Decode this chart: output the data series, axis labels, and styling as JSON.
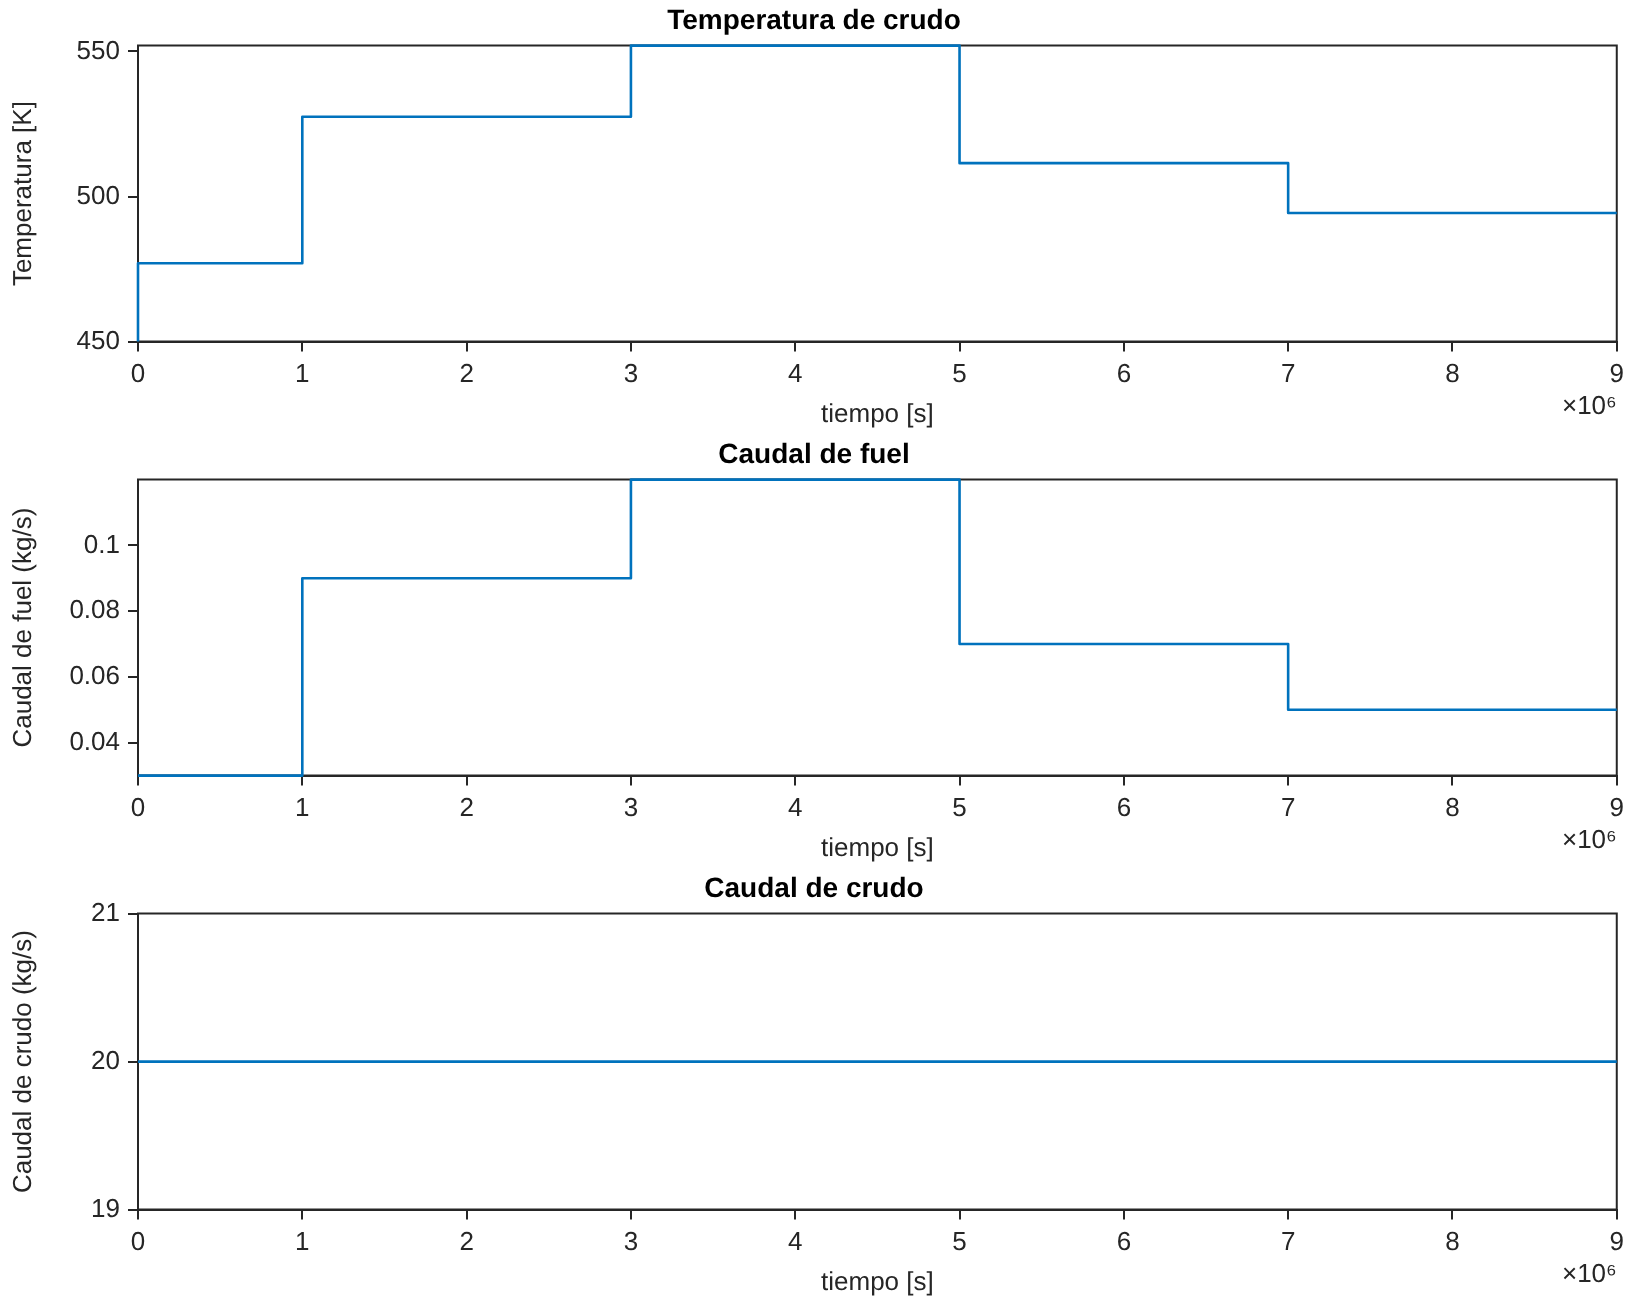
{
  "chart_data": [
    {
      "type": "step",
      "title": "Temperatura de crudo",
      "xlabel": "tiempo [s]",
      "ylabel": "Temperatura [K]",
      "annotations": [
        "×10⁶"
      ],
      "x": [
        0,
        0,
        1,
        3,
        5,
        7,
        9
      ],
      "series": [
        {
          "color": "#0072bd",
          "values": [
            450,
            477,
            527.5,
            552,
            511.5,
            494.3,
            494.3
          ]
        }
      ],
      "xlim": [
        0,
        9
      ],
      "xticks": [
        0,
        1,
        2,
        3,
        4,
        5,
        6,
        7,
        8,
        9
      ],
      "ylim": [
        450,
        552
      ],
      "yticks": [
        450,
        500,
        550
      ],
      "marker": "none",
      "line_style": "solid"
    },
    {
      "type": "step",
      "title": "Caudal de fuel",
      "xlabel": "tiempo [s]",
      "ylabel": "Caudal de fuel (kg/s)",
      "annotations": [
        "×10⁶"
      ],
      "x": [
        0,
        1,
        3,
        5,
        7,
        9
      ],
      "series": [
        {
          "color": "#0072bd",
          "values": [
            0.03,
            0.09,
            0.12,
            0.07,
            0.05,
            0.05
          ]
        }
      ],
      "xlim": [
        0,
        9
      ],
      "xticks": [
        0,
        1,
        2,
        3,
        4,
        5,
        6,
        7,
        8,
        9
      ],
      "ylim": [
        0.03,
        0.12
      ],
      "yticks": [
        0.04,
        0.06,
        0.08,
        0.1
      ],
      "marker": "none",
      "line_style": "solid"
    },
    {
      "type": "step",
      "title": "Caudal de crudo",
      "xlabel": "tiempo [s]",
      "ylabel": "Caudal de crudo (kg/s)",
      "annotations": [
        "×10⁶"
      ],
      "x": [
        0,
        9
      ],
      "series": [
        {
          "color": "#0072bd",
          "values": [
            20,
            20
          ]
        }
      ],
      "xlim": [
        0,
        9
      ],
      "xticks": [
        0,
        1,
        2,
        3,
        4,
        5,
        6,
        7,
        8,
        9
      ],
      "ylim": [
        19,
        21
      ],
      "yticks": [
        19,
        20,
        21
      ],
      "marker": "none",
      "line_style": "solid"
    }
  ]
}
